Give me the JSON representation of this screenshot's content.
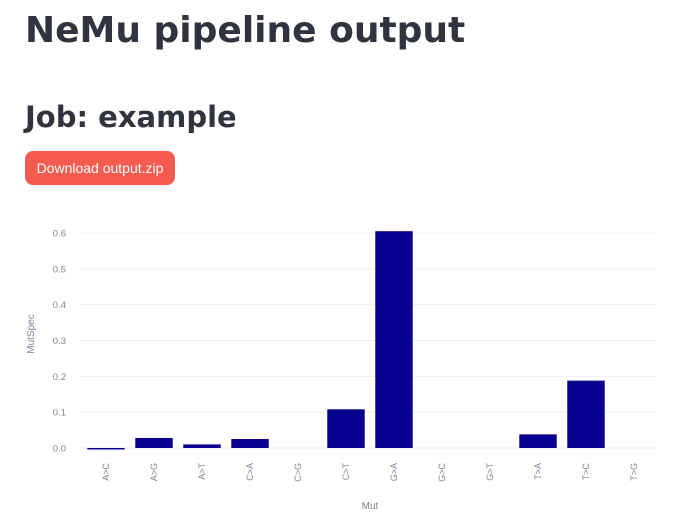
{
  "page": {
    "title": "NeMu pipeline output",
    "job_title": "Job: example",
    "download_label": "Download output.zip"
  },
  "colors": {
    "accent": "#f65b4f",
    "bar": "#07008e",
    "text": "#31333f",
    "axis_text": "#808495",
    "grid": "#efeff3"
  },
  "chart_data": {
    "type": "bar",
    "categories": [
      "A>C",
      "A>G",
      "A>T",
      "C>A",
      "C>G",
      "C>T",
      "G>A",
      "G>C",
      "G>T",
      "T>A",
      "T>C",
      "T>G"
    ],
    "values": [
      -0.003,
      0.028,
      0.01,
      0.025,
      0.0,
      0.108,
      0.605,
      0.0,
      0.0,
      0.038,
      0.188,
      0.0
    ],
    "xlabel": "Mut",
    "ylabel": "MutSpec",
    "ylim": [
      -0.02,
      0.6
    ],
    "yticks": [
      0.0,
      0.1,
      0.2,
      0.3,
      0.4,
      0.5,
      0.6
    ],
    "ytick_labels": [
      "0.0",
      "0.1",
      "0.2",
      "0.3",
      "0.4",
      "0.5",
      "0.6"
    ],
    "grid": true
  }
}
